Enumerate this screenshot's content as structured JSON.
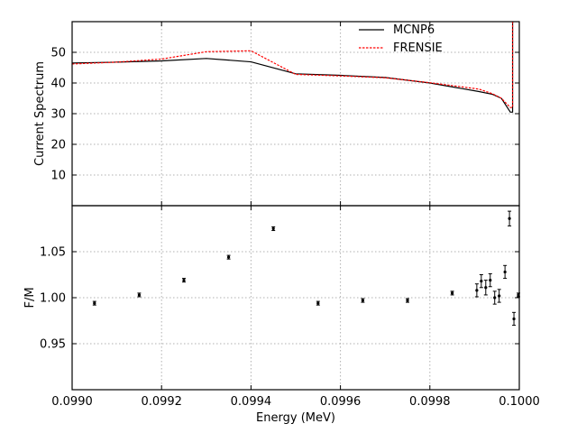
{
  "chart_data": [
    {
      "type": "line",
      "xlabel": "",
      "ylabel": "Current Spectrum",
      "xlim": [
        0.099,
        0.1
      ],
      "ylim": [
        0,
        60
      ],
      "yticks": [
        10,
        20,
        30,
        40,
        50
      ],
      "yticklabels": [
        "10",
        "20",
        "30",
        "40",
        "50"
      ],
      "grid": true,
      "legend": "top-right",
      "series": [
        {
          "name": "MCNP6",
          "color": "#000000",
          "style": "solid",
          "x": [
            0.099,
            0.0991,
            0.0992,
            0.0993,
            0.0994,
            0.0995,
            0.0996,
            0.0997,
            0.0998,
            0.09991,
            0.09994,
            0.09996,
            0.09998,
            0.099985,
            0.099985
          ],
          "y": [
            46.5,
            46.8,
            47.2,
            48.0,
            46.9,
            43.0,
            42.5,
            41.8,
            40.0,
            37.2,
            36.3,
            35.0,
            30.5,
            30.5,
            60
          ]
        },
        {
          "name": "FRENSIE",
          "color": "#ff0000",
          "style": "dashed",
          "x": [
            0.099,
            0.0991,
            0.0992,
            0.0993,
            0.0994,
            0.0995,
            0.0996,
            0.0997,
            0.0998,
            0.09991,
            0.09994,
            0.09996,
            0.09998,
            0.099985,
            0.099985
          ],
          "y": [
            46.2,
            46.8,
            47.8,
            50.2,
            50.5,
            42.8,
            42.3,
            41.7,
            40.1,
            38.0,
            36.5,
            35.0,
            32.0,
            32.0,
            60
          ]
        }
      ]
    },
    {
      "type": "scatter",
      "xlabel": "Energy (MeV)",
      "ylabel": "F/M",
      "xlim": [
        0.099,
        0.1
      ],
      "ylim": [
        0.9,
        1.1
      ],
      "xticks": [
        0.099,
        0.0992,
        0.0994,
        0.0996,
        0.0998,
        0.1
      ],
      "xticklabels": [
        "0.0990",
        "0.0992",
        "0.0994",
        "0.0996",
        "0.0998",
        "0.1000"
      ],
      "yticks": [
        0.95,
        1.0,
        1.05
      ],
      "yticklabels": [
        "0.95",
        "1.00",
        "1.05"
      ],
      "grid": true,
      "points": [
        {
          "x": 0.09905,
          "y": 0.994,
          "err": 0.002
        },
        {
          "x": 0.09915,
          "y": 1.003,
          "err": 0.002
        },
        {
          "x": 0.09925,
          "y": 1.019,
          "err": 0.002
        },
        {
          "x": 0.09935,
          "y": 1.044,
          "err": 0.002
        },
        {
          "x": 0.09945,
          "y": 1.075,
          "err": 0.002
        },
        {
          "x": 0.09955,
          "y": 0.994,
          "err": 0.002
        },
        {
          "x": 0.09965,
          "y": 0.997,
          "err": 0.002
        },
        {
          "x": 0.09975,
          "y": 0.997,
          "err": 0.002
        },
        {
          "x": 0.09985,
          "y": 1.005,
          "err": 0.002
        },
        {
          "x": 0.099905,
          "y": 1.008,
          "err": 0.007
        },
        {
          "x": 0.099915,
          "y": 1.018,
          "err": 0.007
        },
        {
          "x": 0.099925,
          "y": 1.011,
          "err": 0.008
        },
        {
          "x": 0.099935,
          "y": 1.019,
          "err": 0.007
        },
        {
          "x": 0.099945,
          "y": 1.0,
          "err": 0.007
        },
        {
          "x": 0.099955,
          "y": 1.002,
          "err": 0.007
        },
        {
          "x": 0.099968,
          "y": 1.028,
          "err": 0.007
        },
        {
          "x": 0.099978,
          "y": 1.086,
          "err": 0.008
        },
        {
          "x": 0.099988,
          "y": 0.977,
          "err": 0.007
        },
        {
          "x": 0.099998,
          "y": 1.003,
          "err": 0.002
        }
      ]
    }
  ]
}
